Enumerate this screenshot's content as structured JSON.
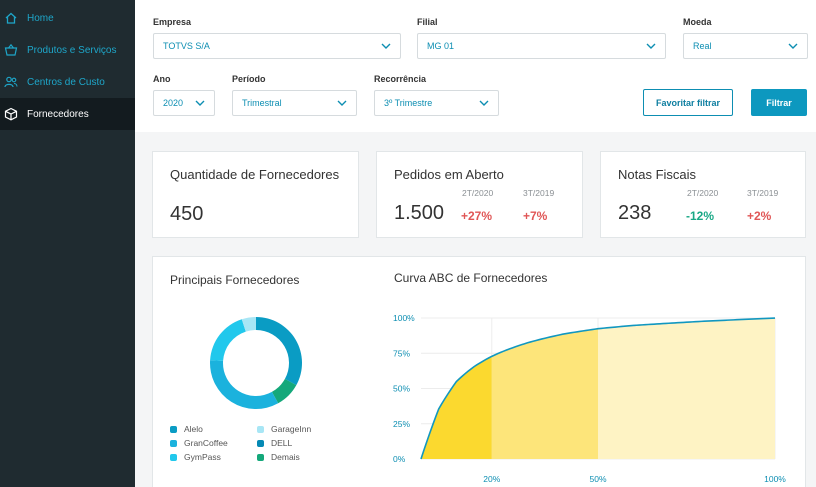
{
  "sidebar": {
    "items": [
      {
        "label": "Home",
        "icon": "home-icon",
        "active": false
      },
      {
        "label": "Produtos e Serviços",
        "icon": "basket-icon",
        "active": false
      },
      {
        "label": "Centros de Custo",
        "icon": "users-icon",
        "active": false
      },
      {
        "label": "Fornecedores",
        "icon": "box-icon",
        "active": true
      }
    ]
  },
  "filters": {
    "empresa": {
      "label": "Empresa",
      "value": "TOTVS S/A"
    },
    "filial": {
      "label": "Filial",
      "value": "MG 01"
    },
    "moeda": {
      "label": "Moeda",
      "value": "Real"
    },
    "ano": {
      "label": "Ano",
      "value": "2020"
    },
    "periodo": {
      "label": "Período",
      "value": "Trimestral"
    },
    "recorrencia": {
      "label": "Recorrência",
      "value": "3º Trimestre"
    },
    "favoritar_label": "Favoritar filtrar",
    "filtrar_label": "Filtrar"
  },
  "kpis": {
    "fornecedores": {
      "title": "Quantidade de Fornecedores",
      "value": "450"
    },
    "pedidos": {
      "title": "Pedidos em Aberto",
      "value": "1.500",
      "comparisons": [
        {
          "period": "2T/2020",
          "delta": "+27%"
        },
        {
          "period": "3T/2019",
          "delta": "+7%"
        }
      ]
    },
    "notas": {
      "title": "Notas Fiscais",
      "value": "238",
      "comparisons": [
        {
          "period": "2T/2020",
          "delta": "-12%"
        },
        {
          "period": "3T/2019",
          "delta": "+2%"
        }
      ]
    }
  },
  "principais": {
    "title": "Principais Fornecedores",
    "legend": [
      {
        "name": "Alelo",
        "color": "#0a9cc4"
      },
      {
        "name": "GarageInn",
        "color": "#a8e6f5"
      },
      {
        "name": "GranCoffee",
        "color": "#1bb2dd"
      },
      {
        "name": "DELL",
        "color": "#0589b4"
      },
      {
        "name": "GymPass",
        "color": "#21c8ec"
      },
      {
        "name": "Demais",
        "color": "#14a87a"
      }
    ]
  },
  "chart_data": [
    {
      "type": "pie",
      "variant": "donut",
      "labels": [
        "Alelo",
        "Demais",
        "GranCoffee",
        "GymPass",
        "GarageInn"
      ],
      "values": [
        33,
        9,
        34,
        19,
        5
      ],
      "colors": [
        "#0a9cc4",
        "#14a87a",
        "#1bb2dd",
        "#21c8ec",
        "#a8e6f5"
      ]
    },
    {
      "type": "area",
      "title": "Curva ABC de Fornecedores",
      "ylim": [
        0,
        100
      ],
      "xlim": [
        0,
        100
      ],
      "yticks": [
        "100%",
        "75%",
        "50%",
        "25%",
        "0%"
      ],
      "xticks": [
        "20%",
        "50%",
        "100%"
      ],
      "x": [
        0,
        5,
        10,
        15,
        20,
        30,
        40,
        50,
        60,
        70,
        80,
        90,
        100
      ],
      "y": [
        0,
        40,
        58,
        65,
        70,
        78,
        85,
        90,
        93,
        95,
        97,
        98.5,
        100
      ],
      "bands": [
        {
          "from": 0,
          "to": 20,
          "color": "#fbd92f"
        },
        {
          "from": 20,
          "to": 50,
          "color": "#fde57a"
        },
        {
          "from": 50,
          "to": 100,
          "color": "#fef3c4"
        }
      ],
      "line_color": "#1197c0"
    }
  ]
}
